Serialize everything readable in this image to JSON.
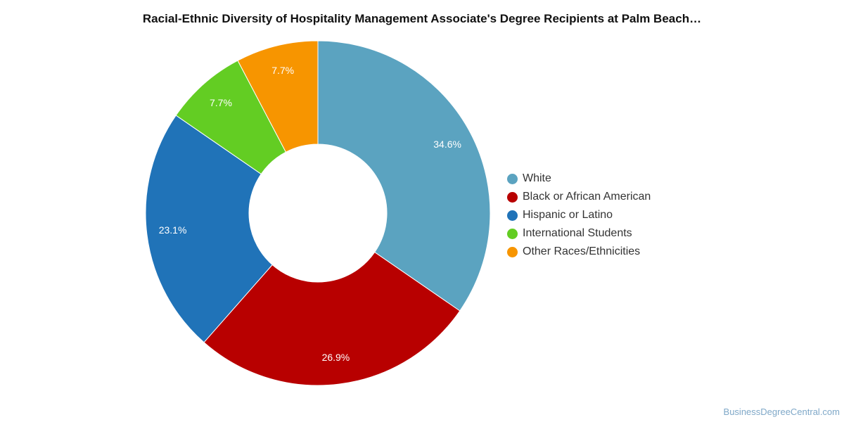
{
  "chart_data": {
    "type": "pie",
    "title": "Racial-Ethnic Diversity of Hospitality Management Associate's Degree Recipients at Palm Beach…",
    "slices": [
      {
        "label": "White",
        "value": 34.6,
        "value_label": "34.6%",
        "color": "#5ba3c0"
      },
      {
        "label": "Black or African American",
        "value": 26.9,
        "value_label": "26.9%",
        "color": "#b80000"
      },
      {
        "label": "Hispanic or Latino",
        "value": 23.1,
        "value_label": "23.1%",
        "color": "#2073b8"
      },
      {
        "label": "International Students",
        "value": 7.7,
        "value_label": "7.7%",
        "color": "#63cd23"
      },
      {
        "label": "Other Races/Ethnicities",
        "value": 7.7,
        "value_label": "7.7%",
        "color": "#f79500"
      }
    ],
    "legend_position": "right",
    "donut": true
  },
  "watermark": "BusinessDegreeCentral.com"
}
